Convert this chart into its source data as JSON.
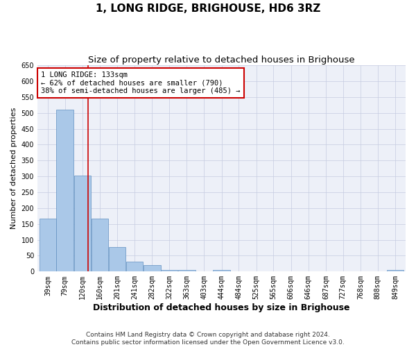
{
  "title": "1, LONG RIDGE, BRIGHOUSE, HD6 3RZ",
  "subtitle": "Size of property relative to detached houses in Brighouse",
  "xlabel": "Distribution of detached houses by size in Brighouse",
  "ylabel": "Number of detached properties",
  "footer_line1": "Contains HM Land Registry data © Crown copyright and database right 2024.",
  "footer_line2": "Contains public sector information licensed under the Open Government Licence v3.0.",
  "bin_edges": [
    39,
    79,
    120,
    160,
    201,
    241,
    282,
    322,
    363,
    403,
    444,
    484,
    525,
    565,
    606,
    646,
    687,
    727,
    768,
    808,
    849
  ],
  "bin_labels": [
    "39sqm",
    "79sqm",
    "120sqm",
    "160sqm",
    "201sqm",
    "241sqm",
    "282sqm",
    "322sqm",
    "363sqm",
    "403sqm",
    "444sqm",
    "484sqm",
    "525sqm",
    "565sqm",
    "606sqm",
    "646sqm",
    "687sqm",
    "727sqm",
    "768sqm",
    "808sqm",
    "849sqm"
  ],
  "bar_heights": [
    168,
    511,
    303,
    168,
    78,
    32,
    20,
    5,
    5,
    0,
    5,
    0,
    0,
    0,
    0,
    0,
    0,
    0,
    0,
    0,
    5
  ],
  "bar_color": "#aac8e8",
  "bar_edge_color": "#6090c0",
  "reference_line_x": 133,
  "reference_line_color": "#cc0000",
  "ylim": [
    0,
    650
  ],
  "yticks": [
    0,
    50,
    100,
    150,
    200,
    250,
    300,
    350,
    400,
    450,
    500,
    550,
    600,
    650
  ],
  "annotation_text": "1 LONG RIDGE: 133sqm\n← 62% of detached houses are smaller (790)\n38% of semi-detached houses are larger (485) →",
  "annotation_box_color": "#cc0000",
  "background_color": "#edf0f8",
  "grid_color": "#c5cce0",
  "title_fontsize": 11,
  "subtitle_fontsize": 9.5,
  "axis_label_fontsize": 8,
  "tick_fontsize": 7,
  "annotation_fontsize": 7.5,
  "footer_fontsize": 6.5
}
